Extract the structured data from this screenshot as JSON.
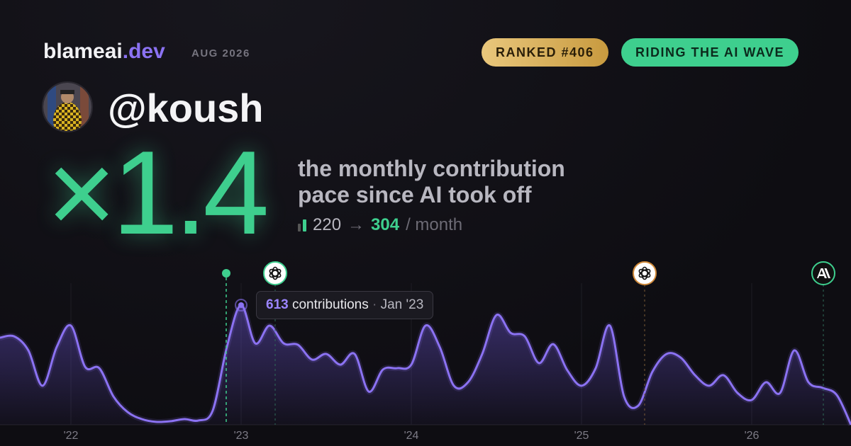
{
  "header": {
    "brand": "blameai",
    "brand_suffix": ".dev",
    "period": "AUG 2026",
    "badges": [
      "RANKED #406",
      "RIDING THE AI WAVE"
    ]
  },
  "profile": {
    "handle": "@koush"
  },
  "headline": {
    "multiplier": "×1.4",
    "description": [
      "the monthly contribution",
      "pace since AI took off"
    ],
    "before": 220,
    "arrow": "→",
    "after": 304,
    "unit": "/ month"
  },
  "chart_data": {
    "type": "area",
    "categories": [
      null,
      null,
      null,
      null,
      null,
      "'22",
      null,
      null,
      null,
      null,
      null,
      null,
      null,
      null,
      null,
      null,
      null,
      "'23",
      null,
      null,
      null,
      null,
      null,
      null,
      null,
      null,
      null,
      null,
      null,
      "'24",
      null,
      null,
      null,
      null,
      null,
      null,
      null,
      null,
      null,
      null,
      null,
      "'25",
      null,
      null,
      null,
      null,
      null,
      null,
      null,
      null,
      null,
      null,
      null,
      "'26",
      null,
      null,
      null,
      null,
      null,
      null,
      null
    ],
    "series": [
      {
        "name": "contributions",
        "color": "#8b72f2",
        "values": [
          446,
          453,
          381,
          200,
          399,
          508,
          297,
          290,
          145,
          65,
          29,
          15,
          18,
          29,
          22,
          73,
          399,
          613,
          417,
          508,
          417,
          410,
          334,
          363,
          308,
          363,
          170,
          283,
          290,
          308,
          508,
          399,
          200,
          218,
          363,
          562,
          471,
          453,
          316,
          413,
          279,
          200,
          290,
          508,
          145,
          98,
          272,
          363,
          344,
          254,
          200,
          254,
          163,
          127,
          218,
          163,
          381,
          218,
          189,
          152,
          0
        ]
      }
    ],
    "ylim": [
      0,
      650
    ],
    "tooltip": {
      "label": "contributions",
      "date": "Jan '23"
    }
  }
}
